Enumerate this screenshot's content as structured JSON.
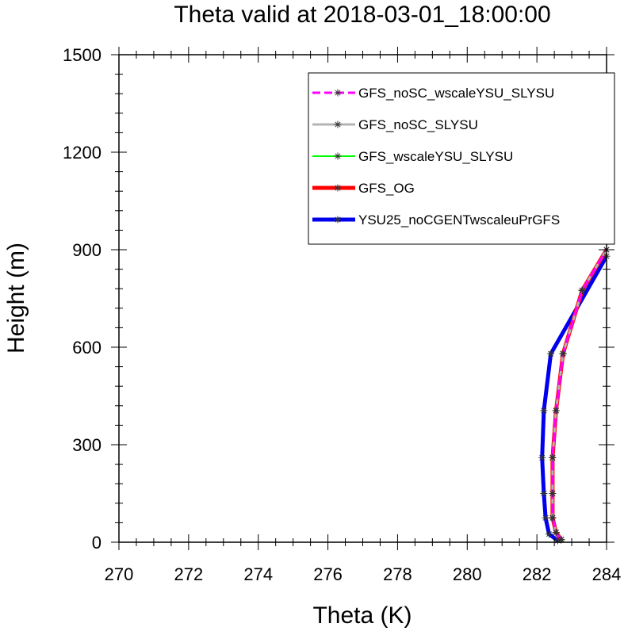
{
  "chart_data": {
    "type": "line",
    "title": "Theta valid at 2018-03-01_18:00:00",
    "xlabel": "Theta (K)",
    "ylabel": "Height (m)",
    "xlim": [
      270,
      284
    ],
    "ylim": [
      0,
      1500
    ],
    "xticks": [
      "270",
      "272",
      "274",
      "276",
      "278",
      "280",
      "282",
      "284"
    ],
    "yticks": [
      "0",
      "300",
      "600",
      "900",
      "1200",
      "1500"
    ],
    "xtick_values": [
      270,
      272,
      274,
      276,
      278,
      280,
      282,
      284
    ],
    "ytick_values": [
      0,
      300,
      600,
      900,
      1200,
      1500
    ],
    "grid": false,
    "legend_position": "top-right",
    "series": [
      {
        "name": "GFS_noSC_wscaleYSU_SLYSU",
        "color": "#ff00ff",
        "dash": "dashed",
        "markers": true,
        "points": [
          [
            282.7,
            8
          ],
          [
            282.55,
            30
          ],
          [
            282.45,
            75
          ],
          [
            282.45,
            150
          ],
          [
            282.45,
            260
          ],
          [
            282.55,
            405
          ],
          [
            282.75,
            580
          ],
          [
            283.3,
            775
          ],
          [
            284.0,
            900
          ]
        ]
      },
      {
        "name": "GFS_noSC_SLYSU",
        "color": "#b4b4b4",
        "dash": "solid",
        "markers": true,
        "points": [
          [
            282.7,
            8
          ],
          [
            282.55,
            30
          ],
          [
            282.45,
            75
          ],
          [
            282.45,
            150
          ],
          [
            282.45,
            260
          ],
          [
            282.55,
            405
          ],
          [
            282.75,
            580
          ],
          [
            283.3,
            775
          ],
          [
            284.0,
            900
          ]
        ]
      },
      {
        "name": "GFS_wscaleYSU_SLYSU",
        "color": "#00ff00",
        "dash": "solid",
        "markers": true,
        "points": [
          [
            282.7,
            8
          ],
          [
            282.55,
            30
          ],
          [
            282.45,
            75
          ],
          [
            282.45,
            150
          ],
          [
            282.45,
            260
          ],
          [
            282.55,
            405
          ],
          [
            282.75,
            580
          ],
          [
            283.3,
            775
          ],
          [
            284.0,
            900
          ]
        ]
      },
      {
        "name": "GFS_OG",
        "color": "#ff0000",
        "dash": "solid",
        "markers": true,
        "points": [
          [
            282.7,
            8
          ],
          [
            282.55,
            30
          ],
          [
            282.45,
            75
          ],
          [
            282.45,
            150
          ],
          [
            282.45,
            260
          ],
          [
            282.55,
            405
          ],
          [
            282.75,
            580
          ],
          [
            283.3,
            775
          ],
          [
            284.0,
            900
          ]
        ]
      },
      {
        "name": "YSU25_noCGENTwscaleuPrGFS",
        "color": "#0000ee",
        "dash": "solid",
        "markers": true,
        "points": [
          [
            282.6,
            5
          ],
          [
            282.35,
            25
          ],
          [
            282.25,
            75
          ],
          [
            282.2,
            150
          ],
          [
            282.15,
            260
          ],
          [
            282.2,
            405
          ],
          [
            282.4,
            580
          ],
          [
            284.0,
            880
          ]
        ]
      }
    ]
  }
}
